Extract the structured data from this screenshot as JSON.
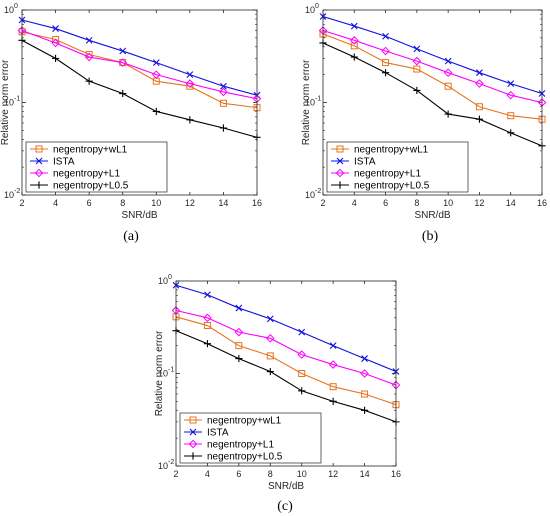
{
  "figure": {
    "panel_labels": [
      "(a)",
      "(b)",
      "(c)"
    ]
  },
  "series_styles": [
    {
      "name": "negentropy+wL1",
      "color": "#E8731E",
      "marker": "square"
    },
    {
      "name": "ISTA",
      "color": "#1010E0",
      "marker": "x"
    },
    {
      "name": "negentropy+L1",
      "color": "#FF00FF",
      "marker": "diamond"
    },
    {
      "name": "negentropy+L0.5",
      "color": "#000000",
      "marker": "plus"
    }
  ],
  "chart_data": [
    {
      "type": "line",
      "panel": "(a)",
      "xlabel": "SNR/dB",
      "ylabel": "Relative norm error",
      "xlim": [
        2,
        16
      ],
      "ylim": [
        0.01,
        1
      ],
      "yscale": "log",
      "x_ticks": [
        "2",
        "4",
        "6",
        "8",
        "10",
        "12",
        "14",
        "16"
      ],
      "y_ticks": [
        "10",
        "10",
        "10"
      ],
      "y_tick_exponents": [
        "-2",
        "-1",
        "0"
      ],
      "legend_position": "bottom-left",
      "x": [
        2,
        4,
        6,
        8,
        10,
        12,
        14,
        16
      ],
      "series": [
        {
          "name": "negentropy+wL1",
          "values": [
            0.58,
            0.48,
            0.33,
            0.27,
            0.17,
            0.15,
            0.098,
            0.088
          ]
        },
        {
          "name": "ISTA",
          "values": [
            0.78,
            0.63,
            0.47,
            0.36,
            0.27,
            0.2,
            0.15,
            0.12
          ]
        },
        {
          "name": "negentropy+L1",
          "values": [
            0.6,
            0.44,
            0.31,
            0.27,
            0.2,
            0.16,
            0.13,
            0.11
          ]
        },
        {
          "name": "negentropy+L0.5",
          "values": [
            0.47,
            0.3,
            0.17,
            0.125,
            0.08,
            0.065,
            0.053,
            0.042
          ]
        }
      ]
    },
    {
      "type": "line",
      "panel": "(b)",
      "xlabel": "SNR/dB",
      "ylabel": "Relative norm error",
      "xlim": [
        2,
        16
      ],
      "ylim": [
        0.01,
        1
      ],
      "yscale": "log",
      "x_ticks": [
        "2",
        "4",
        "6",
        "8",
        "10",
        "12",
        "14",
        "16"
      ],
      "y_ticks": [
        "10",
        "10",
        "10"
      ],
      "y_tick_exponents": [
        "-2",
        "-1",
        "0"
      ],
      "legend_position": "bottom-left",
      "x": [
        2,
        4,
        6,
        8,
        10,
        12,
        14,
        16
      ],
      "series": [
        {
          "name": "negentropy+wL1",
          "values": [
            0.55,
            0.41,
            0.27,
            0.23,
            0.15,
            0.09,
            0.072,
            0.066
          ]
        },
        {
          "name": "ISTA",
          "values": [
            0.85,
            0.67,
            0.52,
            0.38,
            0.28,
            0.21,
            0.16,
            0.125
          ]
        },
        {
          "name": "negentropy+L1",
          "values": [
            0.6,
            0.47,
            0.36,
            0.28,
            0.21,
            0.16,
            0.12,
            0.1
          ]
        },
        {
          "name": "negentropy+L0.5",
          "values": [
            0.44,
            0.31,
            0.21,
            0.135,
            0.075,
            0.066,
            0.047,
            0.034
          ]
        }
      ]
    },
    {
      "type": "line",
      "panel": "(c)",
      "xlabel": "SNR/dB",
      "ylabel": "Relative norm error",
      "xlim": [
        2,
        16
      ],
      "ylim": [
        0.01,
        1
      ],
      "yscale": "log",
      "x_ticks": [
        "2",
        "4",
        "6",
        "8",
        "10",
        "12",
        "14",
        "16"
      ],
      "y_ticks": [
        "10",
        "10",
        "10"
      ],
      "y_tick_exponents": [
        "-2",
        "-1",
        "0"
      ],
      "legend_position": "bottom-left",
      "x": [
        2,
        4,
        6,
        8,
        10,
        12,
        14,
        16
      ],
      "series": [
        {
          "name": "negentropy+wL1",
          "values": [
            0.41,
            0.33,
            0.2,
            0.155,
            0.1,
            0.072,
            0.06,
            0.046
          ]
        },
        {
          "name": "ISTA",
          "values": [
            0.9,
            0.71,
            0.51,
            0.39,
            0.28,
            0.2,
            0.145,
            0.105
          ]
        },
        {
          "name": "negentropy+L1",
          "values": [
            0.48,
            0.4,
            0.28,
            0.24,
            0.16,
            0.125,
            0.1,
            0.075
          ]
        },
        {
          "name": "negentropy+L0.5",
          "values": [
            0.29,
            0.21,
            0.145,
            0.105,
            0.065,
            0.05,
            0.04,
            0.03
          ]
        }
      ]
    }
  ]
}
